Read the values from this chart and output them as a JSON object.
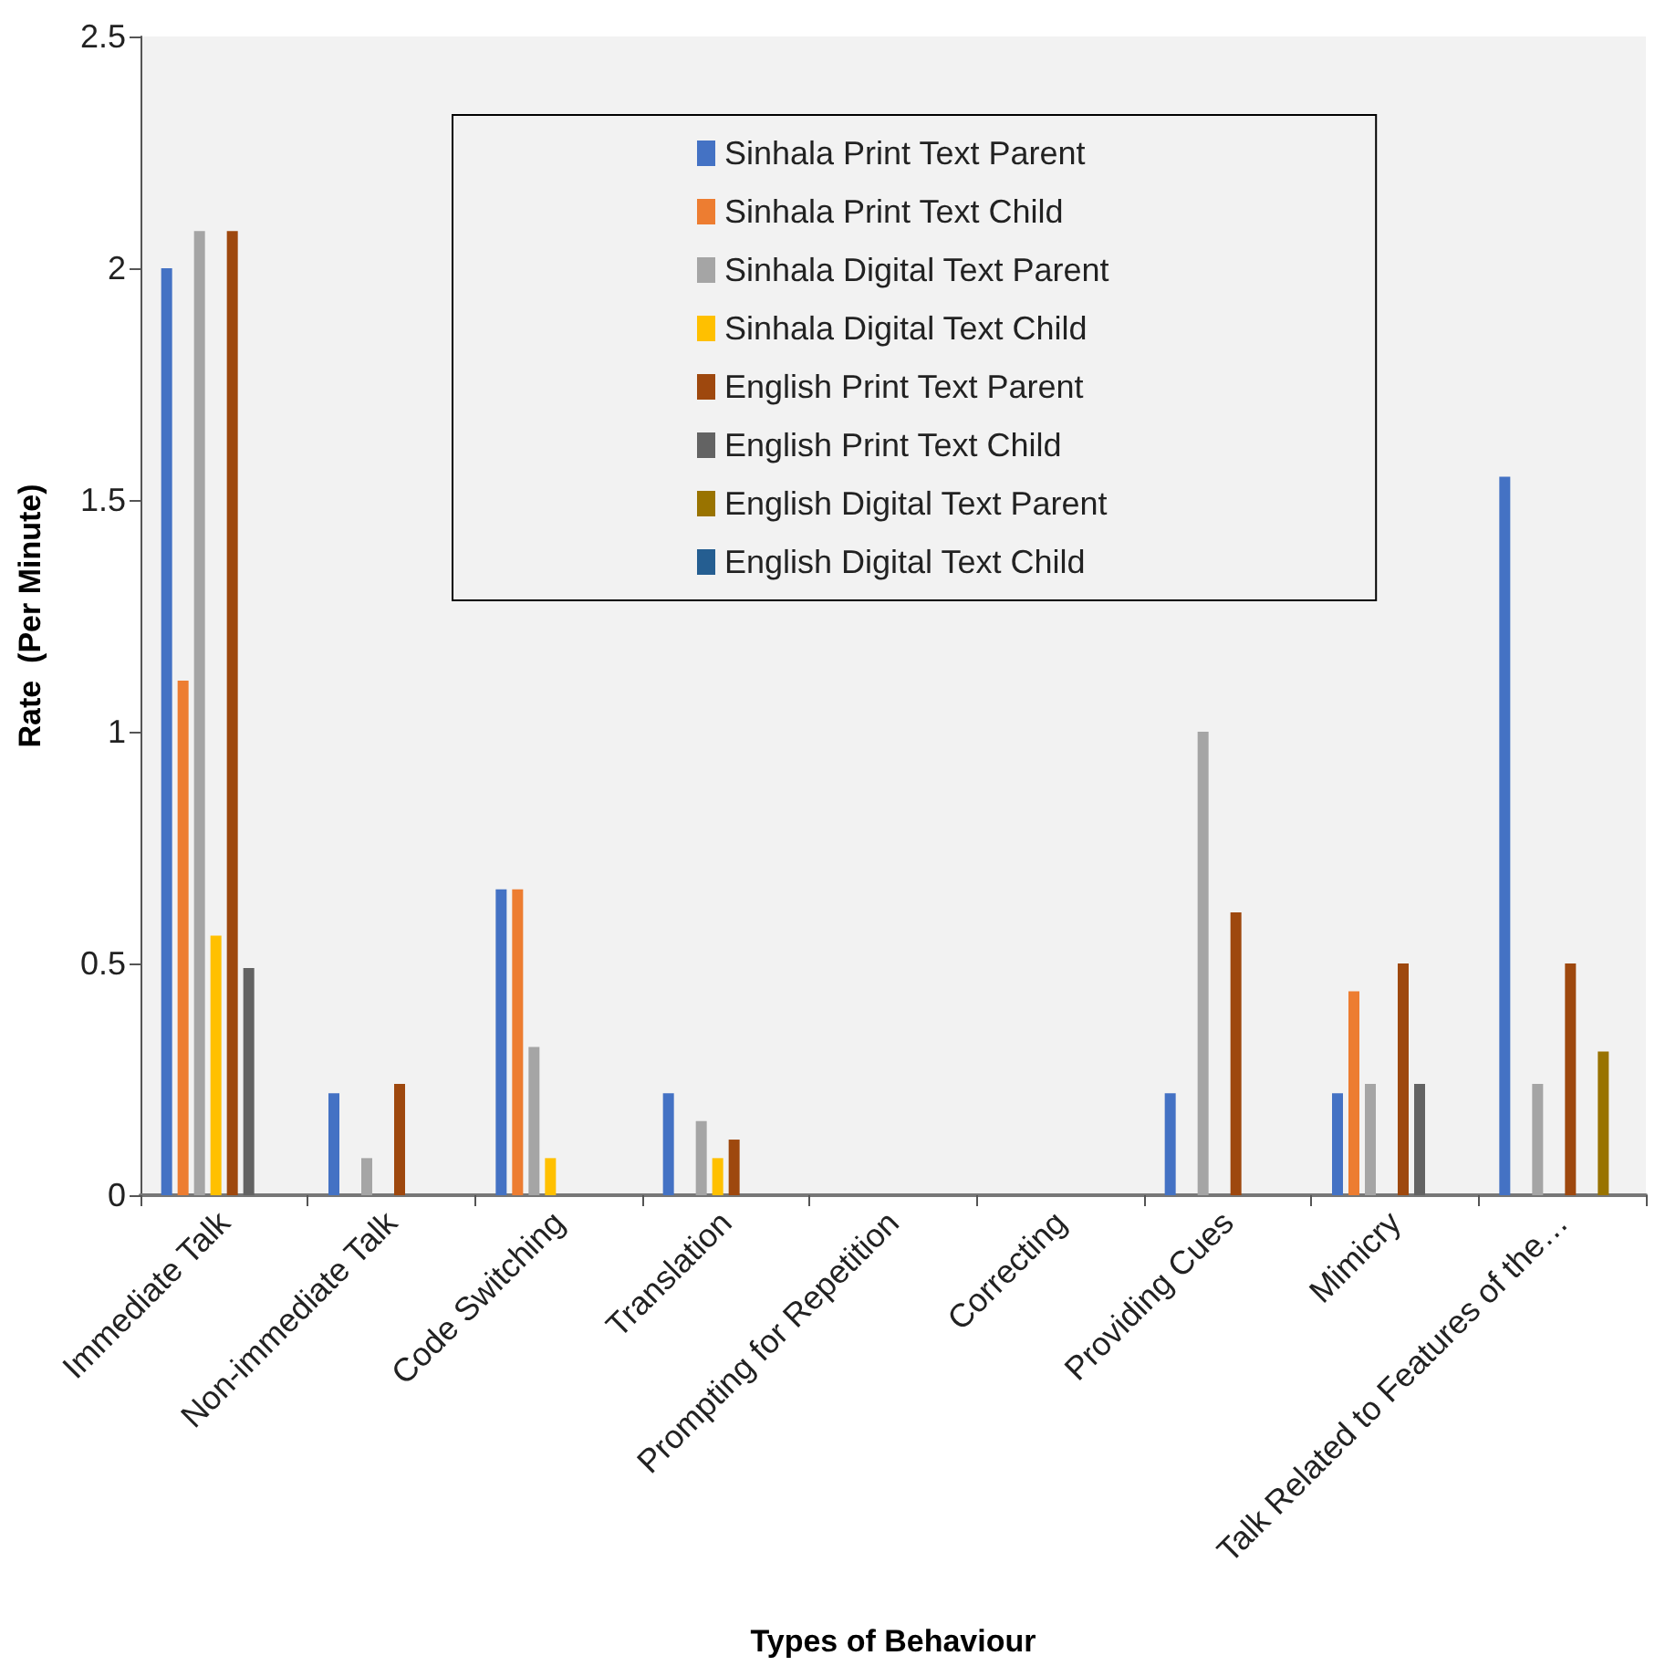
{
  "chart_data": {
    "type": "bar",
    "xlabel": "Types of Behaviour",
    "ylabel": "Rate  (Per Minute)",
    "categories": [
      "Immediate Talk",
      "Non-immediate Talk",
      "Code Switching",
      "Translation",
      "Prompting for Repetition",
      "Correcting",
      "Providing Cues",
      "Mimicry",
      "Talk Related to Features of the…"
    ],
    "series": [
      {
        "name": "Sinhala Print Text Parent",
        "color": "#4472c4",
        "values": [
          2.0,
          0.22,
          0.66,
          0.22,
          0,
          0,
          0.22,
          0.22,
          1.55
        ]
      },
      {
        "name": "Sinhala Print Text Child",
        "color": "#ed7d31",
        "values": [
          1.11,
          0,
          0.66,
          0,
          0,
          0,
          0,
          0.44,
          0
        ]
      },
      {
        "name": "Sinhala Digital Text Parent",
        "color": "#a5a5a5",
        "values": [
          2.08,
          0.08,
          0.32,
          0.16,
          0,
          0,
          1.0,
          0.24,
          0.24
        ]
      },
      {
        "name": "Sinhala Digital Text Child",
        "color": "#ffc000",
        "values": [
          0.56,
          0,
          0.08,
          0.08,
          0,
          0,
          0,
          0,
          0
        ]
      },
      {
        "name": "English Print Text Parent",
        "color": "#9e480e",
        "values": [
          2.08,
          0.24,
          0,
          0.12,
          0,
          0,
          0.61,
          0.5,
          0.5
        ]
      },
      {
        "name": "English Print Text Child",
        "color": "#636363",
        "values": [
          0.49,
          0,
          0,
          0,
          0,
          0,
          0,
          0.24,
          0
        ]
      },
      {
        "name": "English Digital Text Parent",
        "color": "#997300",
        "values": [
          0,
          0,
          0,
          0,
          0,
          0,
          0,
          0,
          0.31
        ]
      },
      {
        "name": "English Digital Text Child",
        "color": "#255e91",
        "values": [
          0,
          0,
          0,
          0,
          0,
          0,
          0,
          0,
          0
        ]
      }
    ],
    "ylim": [
      0,
      2.5
    ],
    "yticks": [
      0,
      0.5,
      1,
      1.5,
      2,
      2.5
    ],
    "grid": false,
    "legend": "top"
  }
}
